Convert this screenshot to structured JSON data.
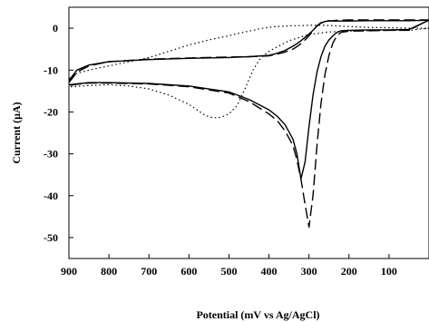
{
  "chart_data": {
    "type": "line",
    "title": "",
    "xlabel": "Potential (mV vs Ag/AgCl)",
    "ylabel": "Current (µA)",
    "xlim": [
      900,
      0
    ],
    "ylim": [
      -55,
      5
    ],
    "x_reversed": true,
    "grid": false,
    "legend": "none",
    "x_ticks": [
      900,
      800,
      700,
      600,
      500,
      400,
      300,
      200,
      100
    ],
    "y_ticks": [
      0,
      -10,
      -20,
      -30,
      -40,
      -50
    ],
    "series": [
      {
        "style": "solid",
        "color": "#000000",
        "x": [
          900,
          880,
          850,
          800,
          700,
          600,
          500,
          450,
          400,
          380,
          360,
          340,
          330,
          320,
          310,
          300,
          290,
          280,
          270,
          260,
          250,
          240,
          230,
          220,
          200,
          150,
          100,
          50,
          0,
          50,
          100,
          150,
          200,
          220,
          230,
          240,
          250,
          260,
          270,
          280,
          290,
          300,
          310,
          320,
          330,
          340,
          360,
          380,
          400,
          450,
          500,
          600,
          700,
          800,
          850,
          880,
          900
        ],
        "y": [
          -12.5,
          -10.0,
          -8.8,
          -8.0,
          -7.5,
          -7.2,
          -7.0,
          -6.8,
          -6.5,
          -6.0,
          -5.3,
          -4.3,
          -3.7,
          -3.0,
          -2.2,
          -1.4,
          -0.5,
          0.5,
          1.2,
          1.6,
          1.7,
          1.7,
          1.7,
          1.7,
          1.7,
          1.8,
          1.8,
          1.8,
          1.9,
          -0.3,
          -0.4,
          -0.4,
          -0.5,
          -0.6,
          -1.0,
          -1.8,
          -2.8,
          -4.3,
          -6.8,
          -10.5,
          -16.0,
          -23.5,
          -32.0,
          -36.0,
          -30.0,
          -26.5,
          -23.0,
          -21.0,
          -19.5,
          -17.0,
          -15.2,
          -13.8,
          -13.2,
          -13.0,
          -13.0,
          -13.3,
          -13.5
        ]
      },
      {
        "style": "dashed",
        "color": "#000000",
        "x": [
          900,
          880,
          850,
          800,
          700,
          600,
          500,
          450,
          400,
          380,
          360,
          340,
          330,
          320,
          310,
          300,
          290,
          280,
          270,
          260,
          250,
          240,
          230,
          220,
          200,
          150,
          100,
          50,
          0,
          50,
          100,
          150,
          200,
          220,
          230,
          240,
          250,
          260,
          270,
          280,
          290,
          300,
          310,
          320,
          330,
          340,
          360,
          380,
          400,
          450,
          500,
          600,
          700,
          800,
          850,
          880,
          900
        ],
        "y": [
          -13.0,
          -10.5,
          -9.0,
          -8.0,
          -7.4,
          -7.1,
          -6.9,
          -6.8,
          -6.6,
          -6.2,
          -5.7,
          -5.0,
          -4.4,
          -3.7,
          -2.8,
          -1.8,
          -0.6,
          0.6,
          1.3,
          1.7,
          1.8,
          1.8,
          1.9,
          1.9,
          2.0,
          2.0,
          2.0,
          2.0,
          2.0,
          -0.5,
          -0.5,
          -0.6,
          -0.7,
          -1.0,
          -1.8,
          -3.5,
          -6.5,
          -11.0,
          -18.0,
          -28.0,
          -40.0,
          -47.5,
          -42.0,
          -36.0,
          -31.5,
          -28.0,
          -24.5,
          -22.0,
          -20.5,
          -17.5,
          -15.5,
          -14.0,
          -13.3,
          -13.1,
          -13.1,
          -13.4,
          -13.7
        ]
      },
      {
        "style": "dotted",
        "color": "#000000",
        "x": [
          900,
          880,
          850,
          800,
          750,
          700,
          650,
          600,
          550,
          500,
          480,
          460,
          440,
          420,
          400,
          380,
          360,
          340,
          320,
          300,
          280,
          260,
          240,
          220,
          200,
          150,
          100,
          50,
          0,
          50,
          100,
          150,
          200,
          250,
          300,
          350,
          400,
          420,
          440,
          460,
          480,
          500,
          520,
          540,
          560,
          580,
          600,
          650,
          700,
          750,
          800,
          850,
          880,
          900
        ],
        "y": [
          -12.0,
          -10.8,
          -10.0,
          -9.0,
          -8.0,
          -7.0,
          -5.5,
          -4.0,
          -2.8,
          -1.8,
          -1.3,
          -0.9,
          -0.5,
          -0.1,
          0.2,
          0.4,
          0.5,
          0.6,
          0.6,
          0.7,
          0.7,
          0.7,
          0.6,
          0.5,
          0.4,
          0.2,
          0.1,
          0.0,
          0.0,
          -0.5,
          -0.5,
          -0.6,
          -0.7,
          -0.9,
          -1.5,
          -3.0,
          -5.5,
          -7.0,
          -10.0,
          -14.5,
          -18.5,
          -20.5,
          -21.3,
          -21.4,
          -20.8,
          -19.5,
          -18.2,
          -16.0,
          -14.5,
          -13.8,
          -13.5,
          -13.7,
          -13.9,
          -14.0
        ]
      }
    ]
  }
}
